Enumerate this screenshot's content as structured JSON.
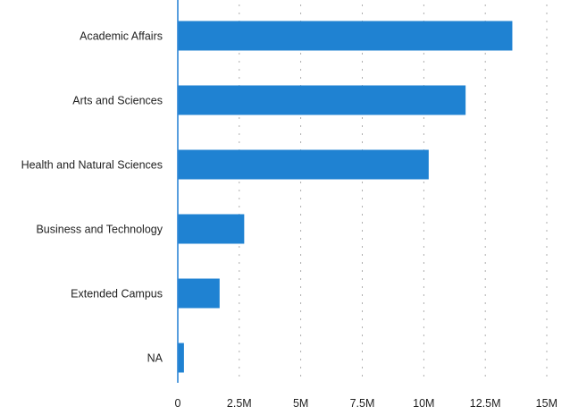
{
  "chart_data": {
    "type": "bar",
    "orientation": "horizontal",
    "categories": [
      "Academic Affairs",
      "Arts and Sciences",
      "Health and Natural Sciences",
      "Business and Technology",
      "Extended Campus",
      "NA"
    ],
    "values": [
      13600000,
      11700000,
      10200000,
      2700000,
      1700000,
      250000
    ],
    "title": "",
    "xlabel": "",
    "ylabel": "",
    "xlim": [
      0,
      15000000
    ],
    "tick_values": [
      0,
      2500000,
      5000000,
      7500000,
      10000000,
      12500000,
      15000000
    ],
    "tick_labels": [
      "0",
      "2.5M",
      "5M",
      "7.5M",
      "10M",
      "12.5M",
      "15M"
    ],
    "grid": true,
    "legend": "none",
    "bar_color": "#1f82d2",
    "axis_color": "#2f86d6"
  }
}
